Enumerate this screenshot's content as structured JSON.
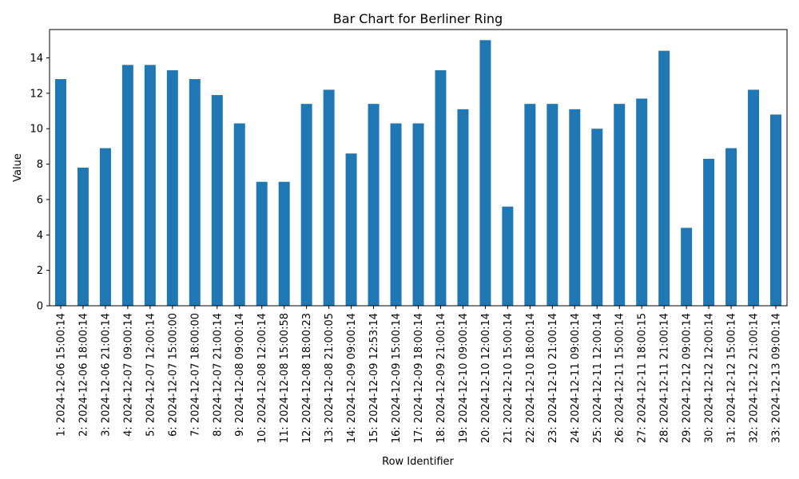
{
  "chart_data": {
    "type": "bar",
    "title": "Bar Chart for Berliner Ring",
    "xlabel": "Row Identifier",
    "ylabel": "Value",
    "ylim": [
      0,
      15.6
    ],
    "yticks": [
      0,
      2,
      4,
      6,
      8,
      10,
      12,
      14
    ],
    "grid": false,
    "legend": "none",
    "bar_color": "#1f77b4",
    "categories": [
      "1: 2024-12-06 15:00:14",
      "2: 2024-12-06 18:00:14",
      "3: 2024-12-06 21:00:14",
      "4: 2024-12-07 09:00:14",
      "5: 2024-12-07 12:00:14",
      "6: 2024-12-07 15:00:00",
      "7: 2024-12-07 18:00:00",
      "8: 2024-12-07 21:00:14",
      "9: 2024-12-08 09:00:14",
      "10: 2024-12-08 12:00:14",
      "11: 2024-12-08 15:00:58",
      "12: 2024-12-08 18:00:23",
      "13: 2024-12-08 21:00:05",
      "14: 2024-12-09 09:00:14",
      "15: 2024-12-09 12:53:14",
      "16: 2024-12-09 15:00:14",
      "17: 2024-12-09 18:00:14",
      "18: 2024-12-09 21:00:14",
      "19: 2024-12-10 09:00:14",
      "20: 2024-12-10 12:00:14",
      "21: 2024-12-10 15:00:14",
      "22: 2024-12-10 18:00:14",
      "23: 2024-12-10 21:00:14",
      "24: 2024-12-11 09:00:14",
      "25: 2024-12-11 12:00:14",
      "26: 2024-12-11 15:00:14",
      "27: 2024-12-11 18:00:15",
      "28: 2024-12-11 21:00:14",
      "29: 2024-12-12 09:00:14",
      "30: 2024-12-12 12:00:14",
      "31: 2024-12-12 15:00:14",
      "32: 2024-12-12 21:00:14",
      "33: 2024-12-13 09:00:14"
    ],
    "values": [
      12.8,
      7.8,
      8.9,
      13.6,
      13.6,
      13.3,
      12.8,
      11.9,
      10.3,
      7.0,
      7.0,
      11.4,
      12.2,
      8.6,
      11.4,
      10.3,
      10.3,
      13.3,
      11.1,
      15.0,
      5.6,
      11.4,
      11.4,
      11.1,
      10.0,
      11.4,
      11.7,
      14.4,
      4.4,
      8.3,
      8.9,
      12.2,
      10.8
    ]
  }
}
